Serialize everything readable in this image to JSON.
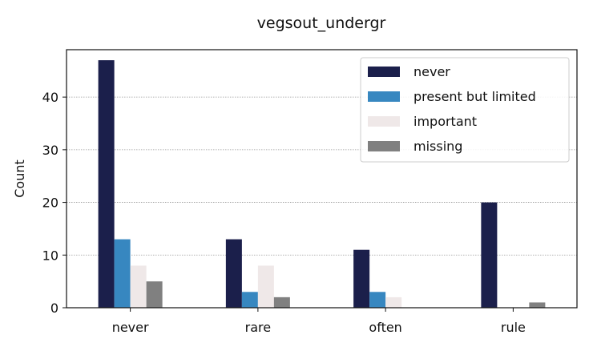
{
  "chart_data": {
    "type": "bar",
    "title": "vegsout_undergr",
    "xlabel": "",
    "ylabel": "Count",
    "categories": [
      "never",
      "rare",
      "often",
      "rule"
    ],
    "series": [
      {
        "name": "never",
        "values": [
          47,
          13,
          11,
          20
        ],
        "color": "#1b1f4b"
      },
      {
        "name": "present but limited",
        "values": [
          13,
          3,
          3,
          0
        ],
        "color": "#3787c0"
      },
      {
        "name": "important",
        "values": [
          8,
          8,
          2,
          0
        ],
        "color": "#efe8e8"
      },
      {
        "name": "missing",
        "values": [
          5,
          2,
          0,
          1
        ],
        "color": "#808080"
      }
    ],
    "ylim": [
      0,
      49
    ],
    "yticks": [
      0,
      10,
      20,
      30,
      40
    ],
    "grid": "horizontal dotted",
    "legend_position": "top-right"
  }
}
